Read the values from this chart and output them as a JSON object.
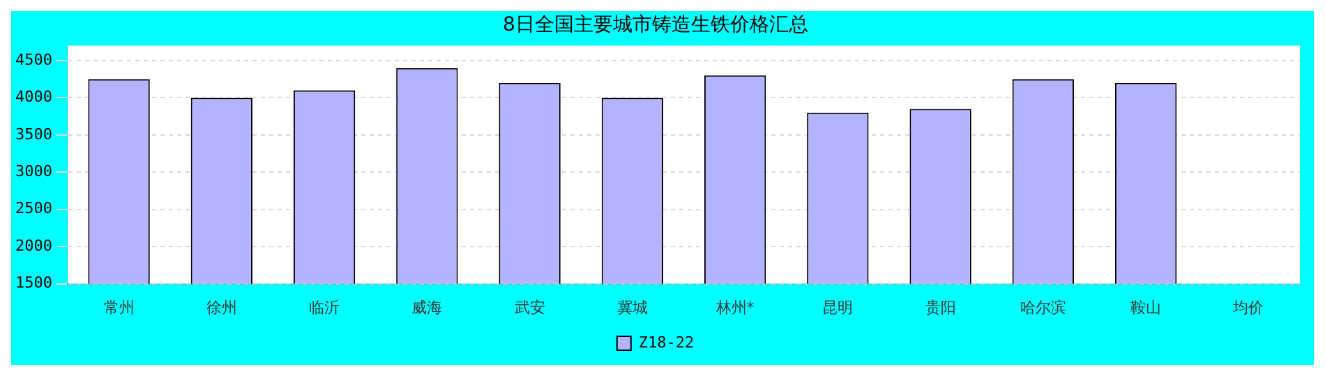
{
  "chart_data": {
    "type": "bar",
    "title": "8日全国主要城市铸造生铁价格汇总",
    "categories": [
      "常州",
      "徐州",
      "临沂",
      "威海",
      "武安",
      "冀城",
      "林州*",
      "昆明",
      "贵阳",
      "哈尔滨",
      "鞍山",
      "均价"
    ],
    "series": [
      {
        "name": "Z18-22",
        "color": "#b3b3ff",
        "values": [
          4250,
          4000,
          4100,
          4400,
          4200,
          4000,
          4300,
          3800,
          3850,
          4250,
          4200,
          null
        ]
      }
    ],
    "ylim": [
      1500,
      4700
    ],
    "yticks": [
      1500,
      2000,
      2500,
      3000,
      3500,
      4000,
      4500
    ],
    "grid": "y",
    "legend": "bottom"
  }
}
